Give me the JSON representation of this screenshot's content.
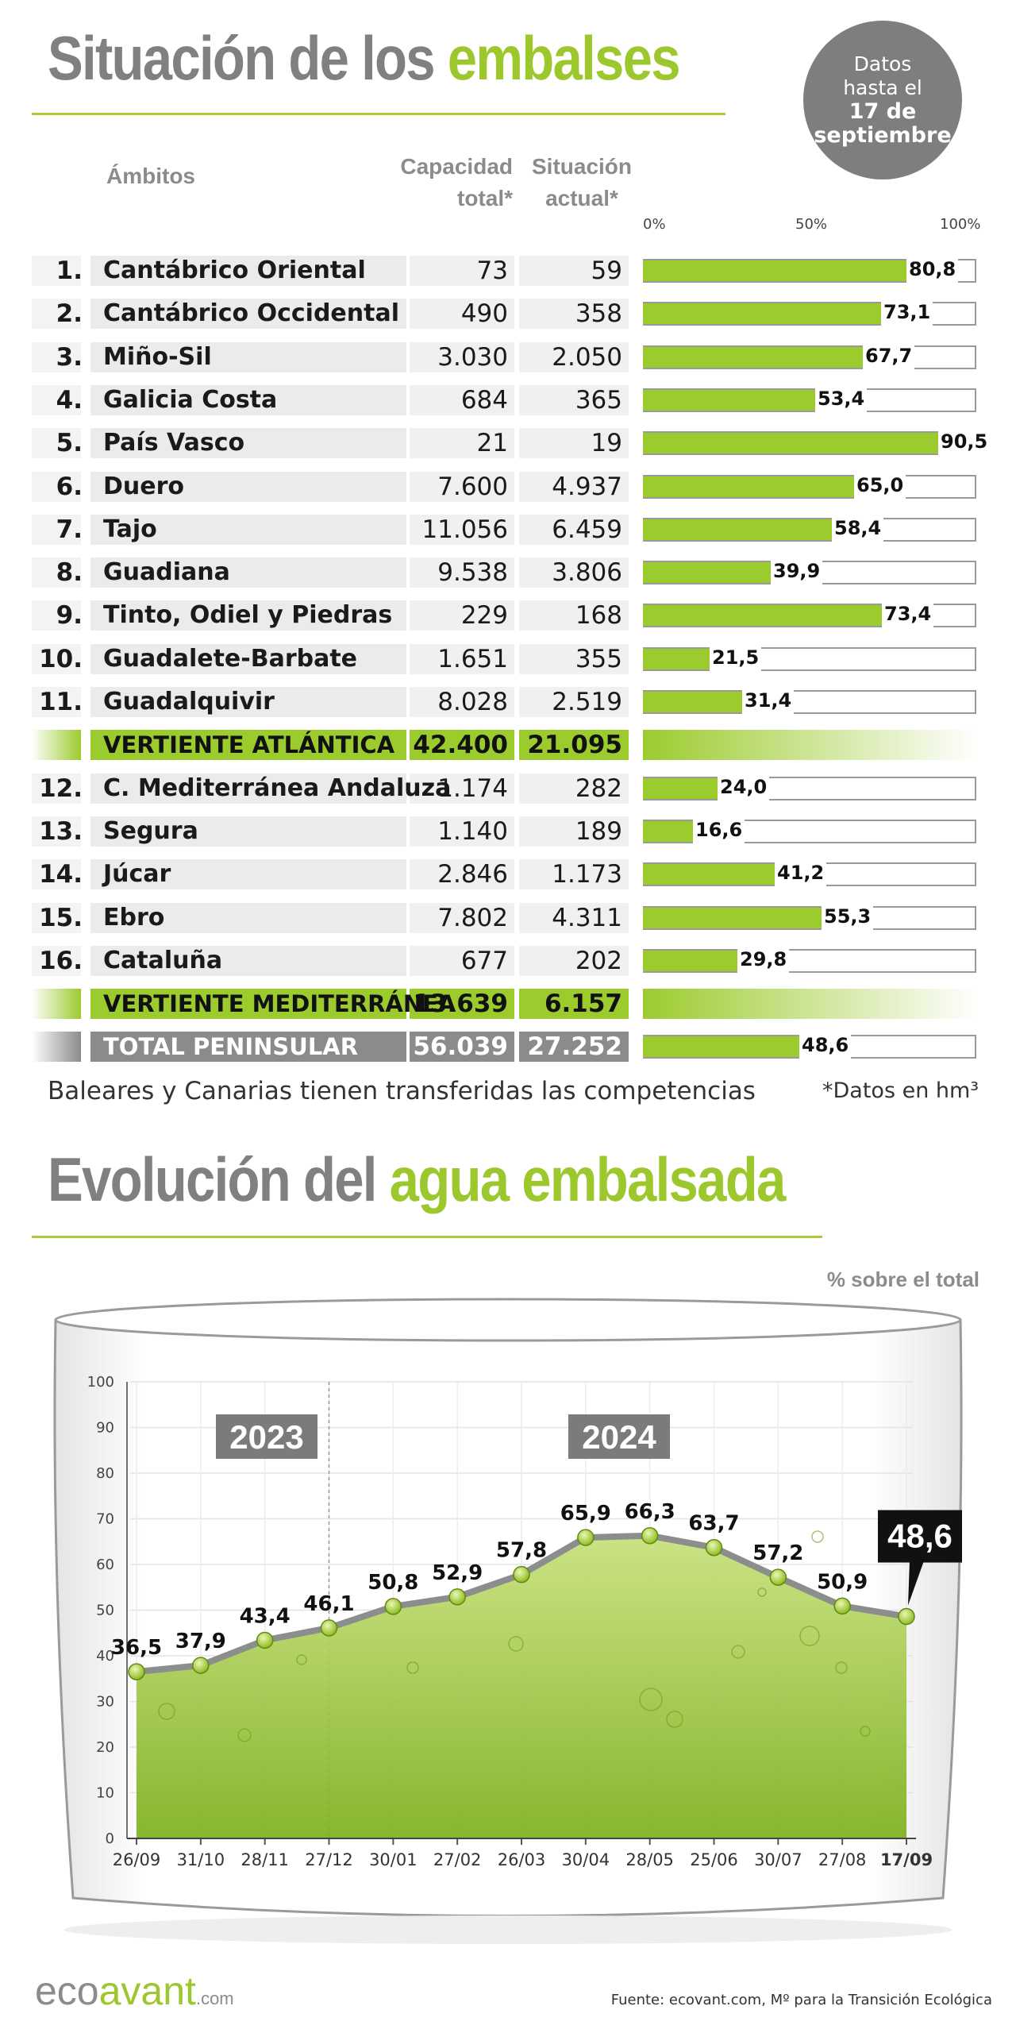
{
  "header": {
    "title_part1": "Situación de los",
    "title_part2": "embalses",
    "badge_line1": "Datos",
    "badge_line2": "hasta el",
    "badge_line3": "17 de",
    "badge_line4": "septiembre"
  },
  "table": {
    "col_ambitos": "Ámbitos",
    "col_capacidad_1": "Capacidad",
    "col_capacidad_2": "total*",
    "col_situacion_1": "Situación",
    "col_situacion_2": "actual*",
    "scale": [
      "0%",
      "50%",
      "100%"
    ],
    "rows": [
      {
        "num": "1.",
        "name": "Cantábrico Oriental",
        "cap": "73",
        "sit": "59",
        "pct": 80.8,
        "pct_label": "80,8"
      },
      {
        "num": "2.",
        "name": "Cantábrico Occidental",
        "cap": "490",
        "sit": "358",
        "pct": 73.1,
        "pct_label": "73,1"
      },
      {
        "num": "3.",
        "name": "Miño-Sil",
        "cap": "3.030",
        "sit": "2.050",
        "pct": 67.7,
        "pct_label": "67,7"
      },
      {
        "num": "4.",
        "name": "Galicia Costa",
        "cap": "684",
        "sit": "365",
        "pct": 53.4,
        "pct_label": "53,4"
      },
      {
        "num": "5.",
        "name": "País Vasco",
        "cap": "21",
        "sit": "19",
        "pct": 90.5,
        "pct_label": "90,5"
      },
      {
        "num": "6.",
        "name": "Duero",
        "cap": "7.600",
        "sit": "4.937",
        "pct": 65.0,
        "pct_label": "65,0"
      },
      {
        "num": "7.",
        "name": "Tajo",
        "cap": "11.056",
        "sit": "6.459",
        "pct": 58.4,
        "pct_label": "58,4"
      },
      {
        "num": "8.",
        "name": "Guadiana",
        "cap": "9.538",
        "sit": "3.806",
        "pct": 39.9,
        "pct_label": "39,9"
      },
      {
        "num": "9.",
        "name": "Tinto, Odiel y Piedras",
        "cap": "229",
        "sit": "168",
        "pct": 73.4,
        "pct_label": "73,4"
      },
      {
        "num": "10.",
        "name": "Guadalete-Barbate",
        "cap": "1.651",
        "sit": "355",
        "pct": 21.5,
        "pct_label": "21,5"
      },
      {
        "num": "11.",
        "name": "Guadalquivir",
        "cap": "8.028",
        "sit": "2.519",
        "pct": 31.4,
        "pct_label": "31,4"
      },
      {
        "summary": "atl",
        "name": "VERTIENTE ATLÁNTICA",
        "cap": "42.400",
        "sit": "21.095"
      },
      {
        "num": "12.",
        "name": "C. Mediterránea Andaluza",
        "cap": "1.174",
        "sit": "282",
        "pct": 24.0,
        "pct_label": "24,0"
      },
      {
        "num": "13.",
        "name": "Segura",
        "cap": "1.140",
        "sit": "189",
        "pct": 16.6,
        "pct_label": "16,6"
      },
      {
        "num": "14.",
        "name": "Júcar",
        "cap": "2.846",
        "sit": "1.173",
        "pct": 41.2,
        "pct_label": "41,2"
      },
      {
        "num": "15.",
        "name": "Ebro",
        "cap": "7.802",
        "sit": "4.311",
        "pct": 55.3,
        "pct_label": "55,3"
      },
      {
        "num": "16.",
        "name": "Cataluña",
        "cap": "677",
        "sit": "202",
        "pct": 29.8,
        "pct_label": "29,8"
      },
      {
        "summary": "med",
        "name": "VERTIENTE MEDITERRÁNEA",
        "cap": "13.639",
        "sit": "6.157"
      },
      {
        "summary": "total",
        "name": "TOTAL PENINSULAR",
        "cap": "56.039",
        "sit": "27.252",
        "pct": 48.6,
        "pct_label": "48,6"
      }
    ],
    "note_left": "Baleares y Canarias tienen transferidas las competencias",
    "note_right": "*Datos en hm³"
  },
  "section2": {
    "title_part1": "Evolución del",
    "title_part2": "agua embalsada",
    "unit_label": "% sobre el total"
  },
  "chart_data": {
    "type": "area",
    "title": "Evolución del agua embalsada",
    "ylabel": "% sobre el total",
    "ylim": [
      0,
      100
    ],
    "yticks": [
      "0",
      "10",
      "20",
      "30",
      "40",
      "50",
      "60",
      "70",
      "80",
      "90",
      "100"
    ],
    "categories": [
      "26/09",
      "31/10",
      "28/11",
      "27/12",
      "30/01",
      "27/02",
      "26/03",
      "30/04",
      "28/05",
      "25/06",
      "30/07",
      "27/08",
      "17/09"
    ],
    "values": [
      36.5,
      37.9,
      43.4,
      46.1,
      50.8,
      52.9,
      57.8,
      65.9,
      66.3,
      63.7,
      57.2,
      50.9,
      48.6
    ],
    "value_labels": [
      "36,5",
      "37,9",
      "43,4",
      "46,1",
      "50,8",
      "52,9",
      "57,8",
      "65,9",
      "66,3",
      "63,7",
      "57,2",
      "50,9",
      "48,6"
    ],
    "year_labels": [
      "2023",
      "2024"
    ],
    "highlight_label": "48,6",
    "grid": true,
    "colors": {
      "line": "#8c8d8d",
      "fill_top": "#c3de6d",
      "fill_bottom": "#7fb01e",
      "marker": "#a9d034"
    }
  },
  "footer": {
    "logo_part1": "eco",
    "logo_part2": "avant",
    "logo_part3": ".com",
    "source": "Fuente: ecovant.com, Mº para la Transición Ecológica"
  }
}
